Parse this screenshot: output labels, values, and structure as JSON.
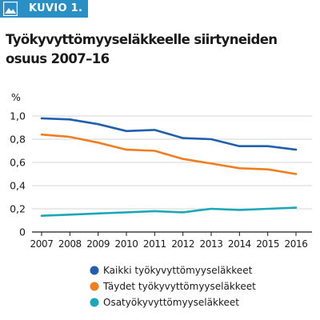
{
  "badge": {
    "label": "KUVIO 1.",
    "icon": "landscape-icon",
    "color": "#2a8fc4"
  },
  "chart_data": {
    "type": "line",
    "title": "Työkyvyttömyyseläkkeelle siirtyneiden osuus 2007–16",
    "ylabel": "%",
    "xlabel": "",
    "x": [
      "2007",
      "2008",
      "2009",
      "2010",
      "2011",
      "2012",
      "2013",
      "2014",
      "2015",
      "2016"
    ],
    "ylim": [
      0,
      1.0
    ],
    "yticks": [
      0,
      0.2,
      0.4,
      0.6,
      0.8,
      1.0
    ],
    "ytick_labels": [
      "0",
      "0,2",
      "0,4",
      "0,6",
      "0,8",
      "1,0"
    ],
    "grid": true,
    "legend_position": "bottom",
    "series": [
      {
        "name": "Kaikki työkyvyttömyyseläkkeet",
        "color": "#1f5fae",
        "values": [
          0.98,
          0.97,
          0.93,
          0.87,
          0.88,
          0.81,
          0.8,
          0.74,
          0.74,
          0.71
        ]
      },
      {
        "name": "Täydet työkyvyttömyyseläkkeet",
        "color": "#f07d1e",
        "values": [
          0.84,
          0.82,
          0.77,
          0.71,
          0.7,
          0.63,
          0.59,
          0.55,
          0.54,
          0.5
        ]
      },
      {
        "name": "Osatyökyvyttömyyseläkkeet",
        "color": "#1aa7b8",
        "values": [
          0.14,
          0.15,
          0.16,
          0.17,
          0.18,
          0.17,
          0.2,
          0.19,
          0.2,
          0.21
        ]
      }
    ]
  }
}
